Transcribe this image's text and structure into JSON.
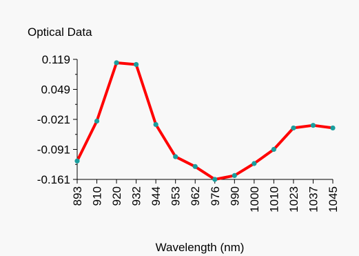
{
  "chart_data": {
    "type": "line",
    "title": "Optical Data",
    "xlabel": "Wavelength (nm)",
    "ylabel": "",
    "x": [
      893,
      910,
      920,
      932,
      944,
      953,
      962,
      976,
      990,
      1000,
      1010,
      1023,
      1037,
      1045
    ],
    "x_tick_labels": [
      "893",
      "910",
      "920",
      "932",
      "944",
      "953",
      "962",
      "976",
      "990",
      "1000",
      "1010",
      "1023",
      "1037",
      "1045"
    ],
    "y_tick_labels": [
      "0.119",
      "0.049",
      "-0.021",
      "-0.091",
      "-0.161"
    ],
    "y_ticks": [
      0.119,
      0.049,
      -0.021,
      -0.091,
      -0.161
    ],
    "ylim": [
      -0.161,
      0.119
    ],
    "series": [
      {
        "values": [
          -0.118,
          -0.025,
          0.111,
          0.107,
          -0.033,
          -0.108,
          -0.131,
          -0.161,
          -0.152,
          -0.124,
          -0.091,
          -0.041,
          -0.035,
          -0.041
        ]
      }
    ],
    "colors": {
      "line": "#ff0000",
      "marker": "#1a9e9e",
      "axis": "#000000"
    },
    "grid": false,
    "legend": "none"
  }
}
